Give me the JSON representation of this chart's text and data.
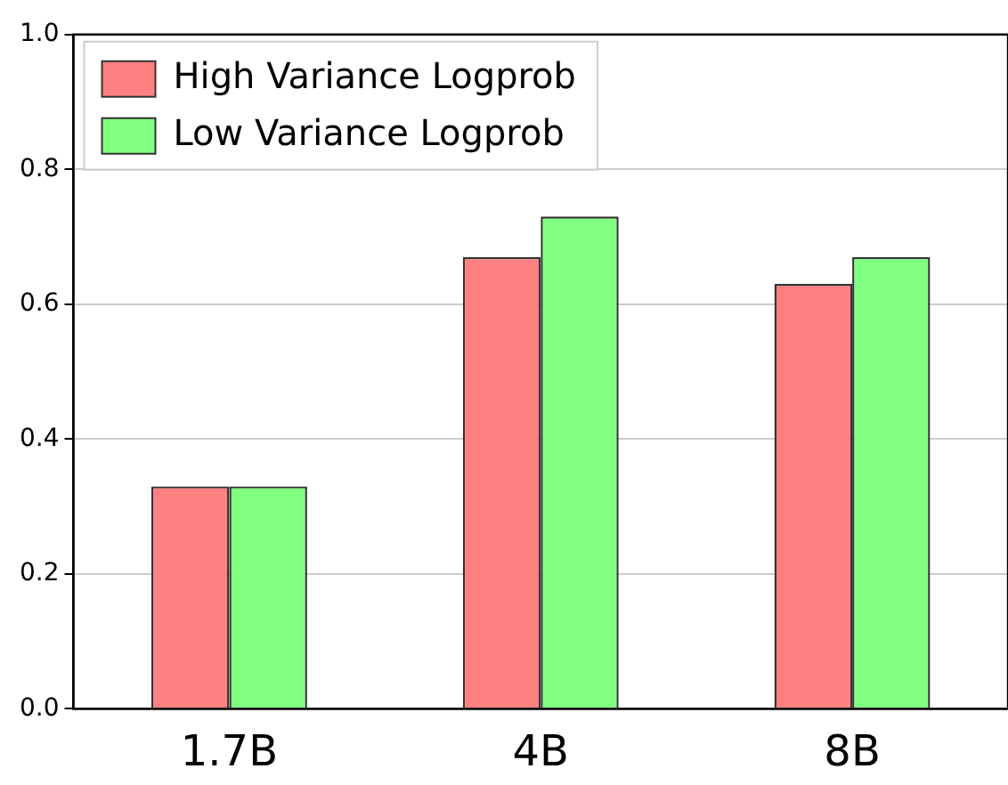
{
  "chart_data": {
    "type": "bar",
    "categories": [
      "1.7B",
      "4B",
      "8B"
    ],
    "series": [
      {
        "name": "High Variance Logprob",
        "color": "#ff8080",
        "values": [
          0.33,
          0.67,
          0.63
        ]
      },
      {
        "name": "Low Variance Logprob",
        "color": "#80ff80",
        "values": [
          0.33,
          0.73,
          0.67
        ]
      }
    ],
    "ylim": [
      0,
      1
    ],
    "yticks": [
      {
        "value": 0,
        "label": "0.0"
      },
      {
        "value": 0.2,
        "label": "0.2"
      },
      {
        "value": 0.4,
        "label": "0.4"
      },
      {
        "value": 0.6,
        "label": "0.6"
      },
      {
        "value": 0.8,
        "label": "0.8"
      },
      {
        "value": 1,
        "label": "1.0"
      }
    ],
    "grid": "y",
    "legend": "top left"
  }
}
